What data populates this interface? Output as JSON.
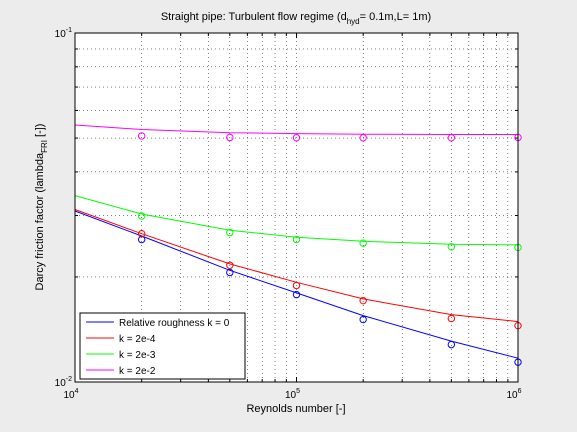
{
  "chart_data": {
    "type": "line",
    "title_main": "Straight pipe: Turbulent flow regime (d",
    "title_sub": "hyd",
    "title_rest": "= 0.1m,L= 1m)",
    "xlabel": "Reynolds number [-]",
    "ylabel_main": "Darcy friction factor (lambda",
    "ylabel_sub": "FRI",
    "ylabel_rest": " [-])",
    "x_scale": "log",
    "y_scale": "log",
    "xlim": [
      10000,
      1000000
    ],
    "ylim": [
      0.01,
      0.1
    ],
    "x_ticks": [
      {
        "base": "10",
        "exp": "4",
        "value": 10000
      },
      {
        "base": "10",
        "exp": "5",
        "value": 100000
      },
      {
        "base": "10",
        "exp": "6",
        "value": 1000000
      }
    ],
    "y_ticks": [
      {
        "base": "10",
        "exp": "-2",
        "value": 0.01
      },
      {
        "base": "10",
        "exp": "-1",
        "value": 0.1
      }
    ],
    "grid": true,
    "legend_position": "bottom-left",
    "series": [
      {
        "name": "Relative roughness k = 0",
        "color": "#0000ff",
        "line": {
          "x": [
            10000,
            20000,
            50000,
            100000,
            200000,
            500000,
            1000000
          ],
          "y": [
            0.0309,
            0.0262,
            0.0209,
            0.018,
            0.0155,
            0.0131,
            0.0117
          ]
        },
        "markers": {
          "x": [
            20000,
            50000,
            100000,
            200000,
            500000,
            1000000
          ],
          "y": [
            0.0256,
            0.0206,
            0.0178,
            0.0151,
            0.0128,
            0.0114
          ]
        }
      },
      {
        "name": "k = 2e-4",
        "color": "#ff0000",
        "line": {
          "x": [
            10000,
            20000,
            50000,
            100000,
            200000,
            500000,
            1000000
          ],
          "y": [
            0.0312,
            0.0266,
            0.0218,
            0.0193,
            0.0173,
            0.0156,
            0.0149
          ]
        },
        "markers": {
          "x": [
            20000,
            50000,
            100000,
            200000,
            500000,
            1000000
          ],
          "y": [
            0.0266,
            0.0216,
            0.0189,
            0.0171,
            0.0152,
            0.0145
          ]
        }
      },
      {
        "name": "k = 2e-3",
        "color": "#00ff00",
        "line": {
          "x": [
            10000,
            20000,
            50000,
            100000,
            200000,
            500000,
            1000000
          ],
          "y": [
            0.0342,
            0.0303,
            0.0272,
            0.026,
            0.0253,
            0.0248,
            0.0247
          ]
        },
        "markers": {
          "x": [
            20000,
            50000,
            100000,
            200000,
            500000,
            1000000
          ],
          "y": [
            0.0299,
            0.0268,
            0.0256,
            0.025,
            0.0244,
            0.0243
          ]
        }
      },
      {
        "name": "k = 2e-2",
        "color": "#ff00ff",
        "line": {
          "x": [
            10000,
            20000,
            50000,
            100000,
            200000,
            500000,
            1000000
          ],
          "y": [
            0.0545,
            0.0529,
            0.0518,
            0.0515,
            0.0513,
            0.0512,
            0.0512
          ]
        },
        "markers": {
          "x": [
            20000,
            50000,
            100000,
            200000,
            500000,
            1000000
          ],
          "y": [
            0.0507,
            0.0502,
            0.0501,
            0.0501,
            0.0501,
            0.0502
          ]
        }
      }
    ]
  }
}
